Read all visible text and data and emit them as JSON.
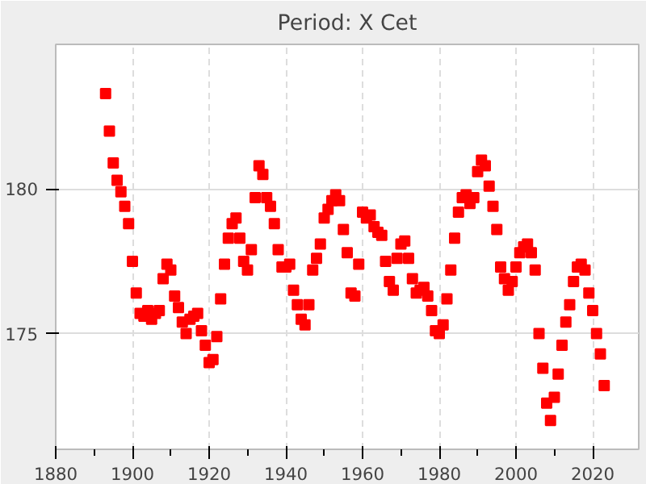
{
  "chart_data": {
    "type": "scatter",
    "title": "Period: X Cet",
    "marker": "square",
    "grid": true,
    "xlim": [
      1880,
      2032
    ],
    "ylim": [
      171,
      185
    ],
    "xticks": [
      1880,
      1900,
      1920,
      1940,
      1960,
      1980,
      2000,
      2020
    ],
    "yticks": [
      175,
      180
    ],
    "series": [
      {
        "color": "#ff0000",
        "x": [
          1893,
          1894,
          1895,
          1896,
          1897,
          1898,
          1899,
          1900,
          1901,
          1902,
          1903,
          1904,
          1905,
          1906,
          1907,
          1908,
          1909,
          1910,
          1911,
          1912,
          1913,
          1914,
          1915,
          1916,
          1917,
          1918,
          1919,
          1920,
          1921,
          1922,
          1923,
          1924,
          1925,
          1926,
          1927,
          1928,
          1929,
          1930,
          1931,
          1932,
          1933,
          1934,
          1935,
          1936,
          1937,
          1938,
          1939,
          1940,
          1941,
          1942,
          1943,
          1944,
          1945,
          1946,
          1947,
          1948,
          1949,
          1950,
          1951,
          1952,
          1953,
          1954,
          1955,
          1956,
          1957,
          1958,
          1959,
          1960,
          1961,
          1962,
          1963,
          1964,
          1965,
          1966,
          1967,
          1968,
          1969,
          1970,
          1971,
          1972,
          1973,
          1974,
          1975,
          1976,
          1977,
          1978,
          1979,
          1980,
          1981,
          1982,
          1983,
          1984,
          1985,
          1986,
          1987,
          1988,
          1989,
          1990,
          1991,
          1992,
          1993,
          1994,
          1995,
          1996,
          1997,
          1998,
          1999,
          2000,
          2001,
          2002,
          2003,
          2004,
          2005,
          2006,
          2007,
          2008,
          2009,
          2010,
          2011,
          2012,
          2013,
          2014,
          2015,
          2016,
          2017,
          2018,
          2019,
          2020,
          2021,
          2022,
          2023
        ],
        "values": [
          183.3,
          182.0,
          180.9,
          180.3,
          179.9,
          179.4,
          178.8,
          177.5,
          176.4,
          175.7,
          175.6,
          175.8,
          175.5,
          175.7,
          175.8,
          176.9,
          177.4,
          177.2,
          176.3,
          175.9,
          175.4,
          175.0,
          175.5,
          175.6,
          175.7,
          175.1,
          174.6,
          174.0,
          174.1,
          174.9,
          176.2,
          177.4,
          178.3,
          178.8,
          179.0,
          178.3,
          177.5,
          177.2,
          177.9,
          179.7,
          180.8,
          180.5,
          179.7,
          179.4,
          178.8,
          177.9,
          177.3,
          177.3,
          177.4,
          176.5,
          176.0,
          175.5,
          175.3,
          176.0,
          177.2,
          177.6,
          178.1,
          179.0,
          179.3,
          179.6,
          179.8,
          179.6,
          178.6,
          177.8,
          176.4,
          176.3,
          177.4,
          179.2,
          179.0,
          179.1,
          178.7,
          178.5,
          178.4,
          177.5,
          176.8,
          176.5,
          177.6,
          178.1,
          178.2,
          177.6,
          176.9,
          176.4,
          176.5,
          176.6,
          176.3,
          175.8,
          175.1,
          175.0,
          175.3,
          176.2,
          177.2,
          178.3,
          179.2,
          179.7,
          179.8,
          179.5,
          179.7,
          180.6,
          181.0,
          180.8,
          180.1,
          179.4,
          178.6,
          177.3,
          176.9,
          176.5,
          176.8,
          177.3,
          177.8,
          178.0,
          178.1,
          177.8,
          177.2,
          175.0,
          173.8,
          172.6,
          172.0,
          172.8,
          173.6,
          174.6,
          175.4,
          176.0,
          176.8,
          177.3,
          177.4,
          177.2,
          176.4,
          175.8,
          175.0,
          174.3,
          173.2
        ]
      }
    ]
  }
}
